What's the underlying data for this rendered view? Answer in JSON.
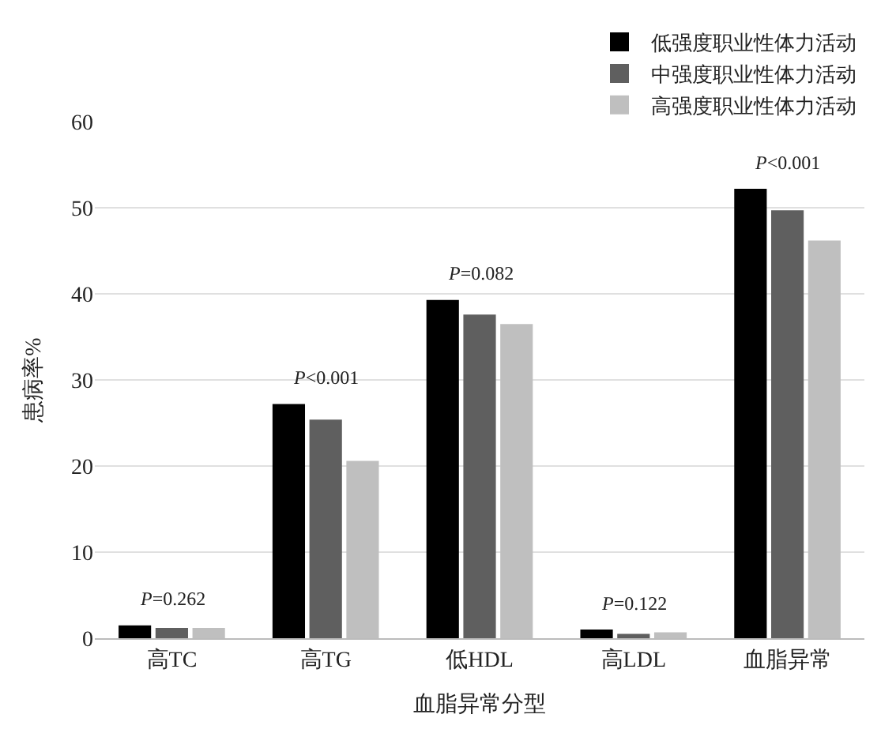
{
  "chart_data": {
    "type": "bar",
    "xlabel": "血脂异常分型",
    "ylabel": "患病率%",
    "categories": [
      "高TC",
      "高TG",
      "低HDL",
      "高LDL",
      "血脂异常"
    ],
    "series": [
      {
        "name": "低强度职业性体力活动",
        "color": "#000000",
        "values": [
          1.5,
          27.2,
          39.3,
          1.0,
          52.2
        ]
      },
      {
        "name": "中强度职业性体力活动",
        "color": "#5f5f5f",
        "values": [
          1.2,
          25.4,
          37.6,
          0.5,
          49.7
        ]
      },
      {
        "name": "高强度职业性体力活动",
        "color": "#bfbfbf",
        "values": [
          1.2,
          20.6,
          36.5,
          0.7,
          46.2
        ]
      }
    ],
    "annotations": [
      "P=0.262",
      "P<0.001",
      "P=0.082",
      "P=0.122",
      "P<0.001"
    ],
    "ylim": [
      0,
      60
    ],
    "yticks": [
      0,
      10,
      20,
      30,
      40,
      50,
      60
    ],
    "grid": "y",
    "legend": "top right"
  }
}
